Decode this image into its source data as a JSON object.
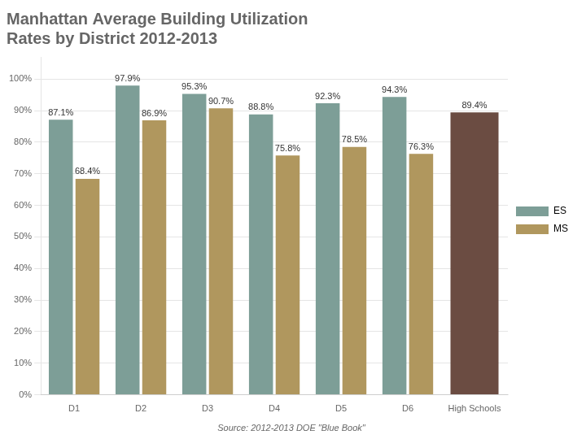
{
  "chart_data": {
    "type": "bar",
    "title": "Manhattan Average Building Utilization\nRates by District 2012-2013",
    "annotations": [
      "Source: 2012-2013 DOE \"Blue Book\""
    ],
    "categories": [
      "D1",
      "D2",
      "D3",
      "D4",
      "D5",
      "D6",
      "High Schools"
    ],
    "series": [
      {
        "name": "ES",
        "color": "#7D9E97",
        "values": [
          87.1,
          97.9,
          95.3,
          88.8,
          92.3,
          94.3,
          null
        ],
        "value_labels": [
          "87.1%",
          "97.9%",
          "95.3%",
          "88.8%",
          "92.3%",
          "94.3%",
          null
        ]
      },
      {
        "name": "MS",
        "color": "#B0975E",
        "colors": [
          "#B0975E",
          "#B0975E",
          "#B0975E",
          "#B0975E",
          "#B0975E",
          "#B0975E",
          "#6B4C42"
        ],
        "values": [
          68.4,
          86.9,
          90.7,
          75.8,
          78.5,
          76.3,
          89.4
        ],
        "value_labels": [
          "68.4%",
          "86.9%",
          "90.7%",
          "75.8%",
          "78.5%",
          "76.3%",
          "89.4%"
        ]
      }
    ],
    "ylim": [
      0,
      107
    ],
    "yticks": [
      {
        "value": 0,
        "label": "0%"
      },
      {
        "value": 10,
        "label": "10%"
      },
      {
        "value": 20,
        "label": "20%"
      },
      {
        "value": 30,
        "label": "30%"
      },
      {
        "value": 40,
        "label": "40%"
      },
      {
        "value": 50,
        "label": "50%"
      },
      {
        "value": 60,
        "label": "60%"
      },
      {
        "value": 70,
        "label": "70%"
      },
      {
        "value": 80,
        "label": "80%"
      },
      {
        "value": 90,
        "label": "90%"
      },
      {
        "value": 100,
        "label": "100%"
      }
    ],
    "grid": true,
    "legend": "right",
    "data_labels": true
  }
}
